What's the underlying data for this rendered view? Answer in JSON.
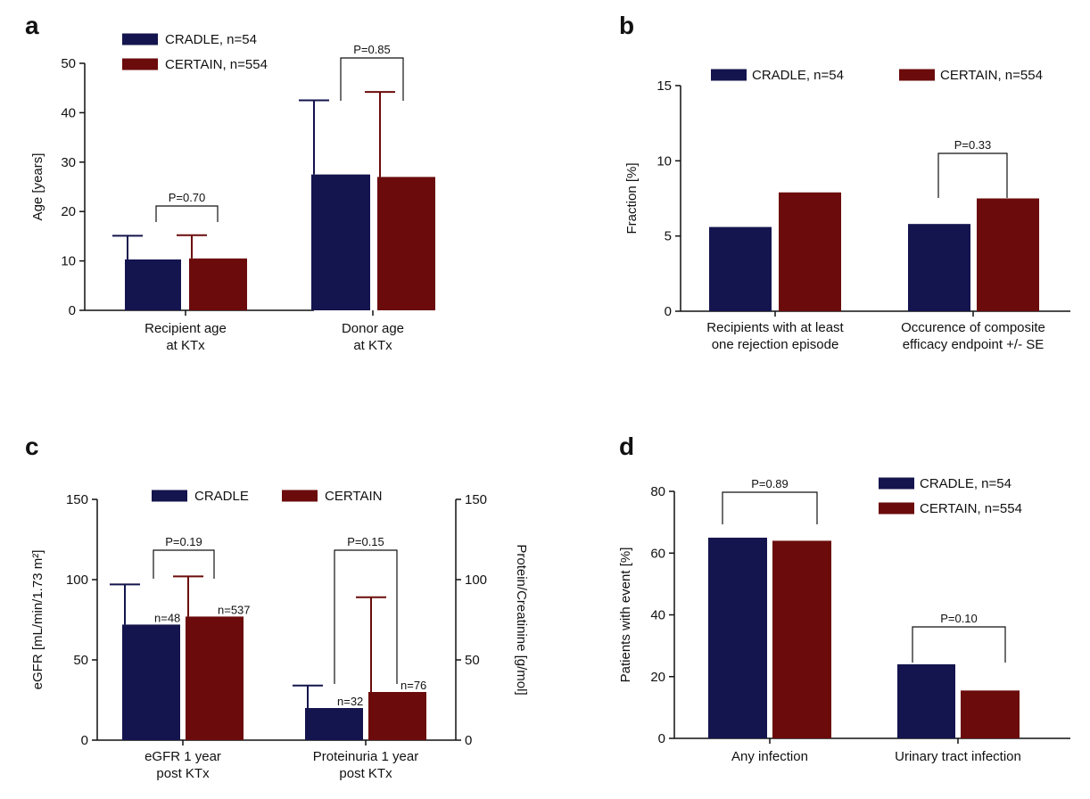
{
  "colors": {
    "cradle": "#14144e",
    "certain": "#6b0b0b",
    "axis": "#111111"
  },
  "chart_data": [
    {
      "id": "a",
      "type": "bar",
      "panel_label": "a",
      "ylabel": "Age [years]",
      "ylim": [
        0,
        50
      ],
      "yticks": [
        0,
        10,
        20,
        30,
        40,
        50
      ],
      "categories": [
        "Recipient age at KTx",
        "Donor age at KTx"
      ],
      "category_lines": [
        [
          "Recipient age",
          "at KTx"
        ],
        [
          "Donor age",
          "at KTx"
        ]
      ],
      "series": [
        {
          "name": "CRADLE, n=54",
          "values": [
            10.3,
            27.5
          ],
          "error_upper": [
            15.1,
            42.5
          ]
        },
        {
          "name": "CERTAIN, n=554",
          "values": [
            10.5,
            27.0
          ],
          "error_upper": [
            15.2,
            44.2
          ]
        }
      ],
      "p_values": [
        "P=0.70",
        "P=0.85"
      ],
      "legend_position": "top-left"
    },
    {
      "id": "b",
      "type": "bar",
      "panel_label": "b",
      "ylabel": "Fraction [%]",
      "ylim": [
        0,
        15
      ],
      "yticks": [
        0,
        5,
        10,
        15
      ],
      "categories": [
        "Recipients with at least one rejection episode",
        "Occurence of composite efficacy endpoint +/- SE"
      ],
      "category_lines": [
        [
          "Recipients with at least",
          "one rejection episode"
        ],
        [
          "Occurence of composite",
          "efficacy endpoint +/- SE"
        ]
      ],
      "series": [
        {
          "name": "CRADLE, n=54",
          "values": [
            5.6,
            5.8
          ]
        },
        {
          "name": "CERTAIN, n=554",
          "values": [
            7.9,
            7.5
          ]
        }
      ],
      "p_values": [
        "",
        "P=0.33"
      ],
      "legend_position": "top"
    },
    {
      "id": "c",
      "type": "bar",
      "panel_label": "c",
      "ylabel": "eGFR [mL/min/1.73 m²]",
      "ylabel_right": "Protein/Creatinine [g/mol]",
      "ylim": [
        0,
        150
      ],
      "yticks": [
        0,
        50,
        100,
        150
      ],
      "ylim_right": [
        0,
        150
      ],
      "categories": [
        "eGFR 1 year post KTx",
        "Proteinuria 1 year post KTx"
      ],
      "category_lines": [
        [
          "eGFR 1 year",
          "post KTx"
        ],
        [
          "Proteinuria 1 year",
          "post KTx"
        ]
      ],
      "series": [
        {
          "name": "CRADLE",
          "values": [
            72,
            20
          ],
          "error_upper": [
            97,
            34
          ],
          "n_labels": [
            "n=48",
            "n=32"
          ]
        },
        {
          "name": "CERTAIN",
          "values": [
            77,
            30
          ],
          "error_upper": [
            102,
            89
          ],
          "n_labels": [
            "n=537",
            "n=76"
          ]
        }
      ],
      "p_values": [
        "P=0.19",
        "P=0.15"
      ],
      "legend_position": "top"
    },
    {
      "id": "d",
      "type": "bar",
      "panel_label": "d",
      "ylabel": "Patients with event [%]",
      "ylim": [
        0,
        80
      ],
      "yticks": [
        0,
        20,
        40,
        60,
        80
      ],
      "categories": [
        "Any infection",
        "Urinary tract infection"
      ],
      "category_lines": [
        [
          "Any infection"
        ],
        [
          "Urinary tract infection"
        ]
      ],
      "series": [
        {
          "name": "CRADLE, n=54",
          "values": [
            65,
            24
          ]
        },
        {
          "name": "CERTAIN, n=554",
          "values": [
            64,
            15.5
          ]
        }
      ],
      "p_values": [
        "P=0.89",
        "P=0.10"
      ],
      "legend_position": "top-right"
    }
  ]
}
